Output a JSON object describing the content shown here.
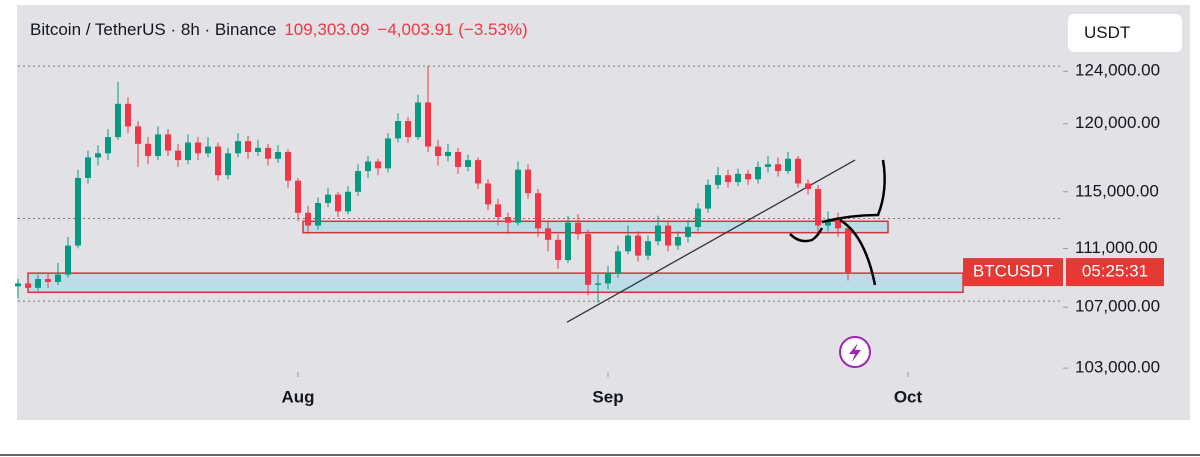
{
  "chart_data": {
    "type": "candlestick",
    "title": "Bitcoin / TetherUS · 8h · Binance",
    "last_price_label": "109,303.09",
    "change_label": "−4,003.91 (−3.53%)",
    "currency": "USDT",
    "symbol": "BTCUSDT",
    "countdown": "05:25:31",
    "log": true,
    "grid": false,
    "up_color": "#089981",
    "down_color": "#f23645",
    "xlim": [
      0,
      104.5
    ],
    "xticks": [
      {
        "value": 28,
        "label": "Aug"
      },
      {
        "value": 59,
        "label": "Sep"
      },
      {
        "value": 89,
        "label": "Oct"
      }
    ],
    "ylim": [
      102750,
      129000
    ],
    "yticks": [
      {
        "value": 103000,
        "label": "103,000.00"
      },
      {
        "value": 107000,
        "label": "107,000.00"
      },
      {
        "value": 111000,
        "label": "111,000.00"
      },
      {
        "value": 115000,
        "label": "115,000.00"
      },
      {
        "value": 120000,
        "label": "120,000.00"
      },
      {
        "value": 124000,
        "label": "124,000.00"
      }
    ],
    "x": [
      0,
      1,
      2,
      3,
      4,
      5,
      6,
      7,
      8,
      9,
      10,
      11,
      12,
      13,
      14,
      15,
      16,
      17,
      18,
      19,
      20,
      21,
      22,
      23,
      24,
      25,
      26,
      27,
      28,
      29,
      30,
      31,
      32,
      33,
      34,
      35,
      36,
      37,
      38,
      39,
      40,
      41,
      42,
      43,
      44,
      45,
      46,
      47,
      48,
      49,
      50,
      51,
      52,
      53,
      54,
      55,
      56,
      57,
      58,
      59,
      60,
      61,
      62,
      63,
      64,
      65,
      66,
      67,
      68,
      69,
      70,
      71,
      72,
      73,
      74,
      75,
      76,
      77,
      78,
      79,
      80,
      81,
      82,
      83
    ],
    "open": [
      108400,
      108600,
      108300,
      108900,
      108700,
      109200,
      111200,
      116000,
      117500,
      117800,
      119000,
      121500,
      119800,
      118500,
      117600,
      119200,
      118000,
      117300,
      118600,
      117800,
      118300,
      116200,
      117800,
      118700,
      117900,
      118200,
      117400,
      117900,
      115800,
      113500,
      112600,
      114200,
      114800,
      113600,
      115000,
      116500,
      117200,
      116700,
      118900,
      120200,
      119000,
      121600,
      118300,
      117600,
      117900,
      116800,
      117300,
      115600,
      114100,
      113200,
      112800,
      116600,
      114900,
      112400,
      111600,
      110200,
      112800,
      112000,
      108500,
      108600,
      109300,
      110800,
      111900,
      110500,
      111500,
      112600,
      111200,
      111800,
      112500,
      113800,
      115500,
      116200,
      115700,
      116300,
      115900,
      116800,
      117000,
      116500,
      117400,
      115600,
      115200,
      112600,
      113000,
      112400
    ],
    "high": [
      108900,
      109000,
      109200,
      109300,
      110000,
      111800,
      116600,
      118000,
      118400,
      119600,
      123200,
      122000,
      120200,
      119000,
      119800,
      119600,
      118500,
      119200,
      119000,
      119000,
      118600,
      118200,
      119300,
      119100,
      118800,
      118500,
      118400,
      118100,
      116000,
      114000,
      114600,
      115300,
      115000,
      115400,
      117000,
      117600,
      117400,
      119300,
      120800,
      120500,
      122200,
      124400,
      118800,
      118500,
      118200,
      117700,
      117500,
      115900,
      114500,
      113500,
      117200,
      117000,
      115200,
      112900,
      112000,
      113300,
      113400,
      112300,
      109200,
      109800,
      111200,
      112600,
      112200,
      111900,
      113300,
      112900,
      112200,
      113000,
      114200,
      115900,
      116800,
      116600,
      116700,
      116600,
      117200,
      117600,
      117500,
      117900,
      117600,
      115900,
      115500,
      113600,
      113500,
      112600
    ],
    "low": [
      107600,
      108000,
      108100,
      108300,
      108500,
      109000,
      111000,
      115600,
      116900,
      117300,
      118800,
      119300,
      116800,
      117000,
      117300,
      117600,
      116800,
      117000,
      117300,
      117500,
      115800,
      115900,
      117500,
      117400,
      117600,
      116900,
      117100,
      115300,
      112900,
      112000,
      112300,
      113900,
      113200,
      113400,
      114700,
      116000,
      116200,
      116400,
      118600,
      118600,
      118800,
      117900,
      116900,
      117200,
      116300,
      116500,
      115200,
      113700,
      112600,
      112000,
      112600,
      114500,
      111800,
      110800,
      109600,
      110000,
      111600,
      107800,
      107300,
      108200,
      109000,
      110600,
      110100,
      110200,
      111200,
      110800,
      110900,
      111400,
      112200,
      113500,
      115200,
      115300,
      115400,
      115500,
      115600,
      116400,
      116100,
      116300,
      115300,
      114800,
      112000,
      112200,
      111800,
      108800
    ],
    "close": [
      108600,
      108300,
      108900,
      108700,
      109200,
      111200,
      116000,
      117500,
      117800,
      119000,
      121500,
      119800,
      118500,
      117600,
      119200,
      118000,
      117300,
      118600,
      117800,
      118300,
      116200,
      117800,
      118700,
      117900,
      118200,
      117400,
      117900,
      115800,
      113500,
      112600,
      114200,
      114800,
      113600,
      115000,
      116500,
      117200,
      116700,
      118900,
      120200,
      119000,
      121600,
      118300,
      117600,
      117900,
      116800,
      117300,
      115600,
      114100,
      113200,
      112800,
      116600,
      114900,
      112400,
      111600,
      110200,
      112800,
      112000,
      108500,
      108600,
      109300,
      110800,
      111900,
      110500,
      111500,
      112600,
      111200,
      111800,
      112500,
      113800,
      115500,
      116200,
      115700,
      116300,
      115900,
      116800,
      117000,
      116500,
      117400,
      115600,
      115200,
      112600,
      113000,
      112400,
      109303.09
    ],
    "levels": [
      124400,
      113100,
      107400
    ],
    "zones": [
      {
        "x": [
          1,
          94.5
        ],
        "y": [
          108000,
          109300
        ]
      },
      {
        "x": [
          28.5,
          87
        ],
        "y": [
          112100,
          112900
        ]
      }
    ],
    "trendline": {
      "x": [
        54.9,
        83.7
      ],
      "y": [
        106000,
        117300
      ]
    }
  }
}
